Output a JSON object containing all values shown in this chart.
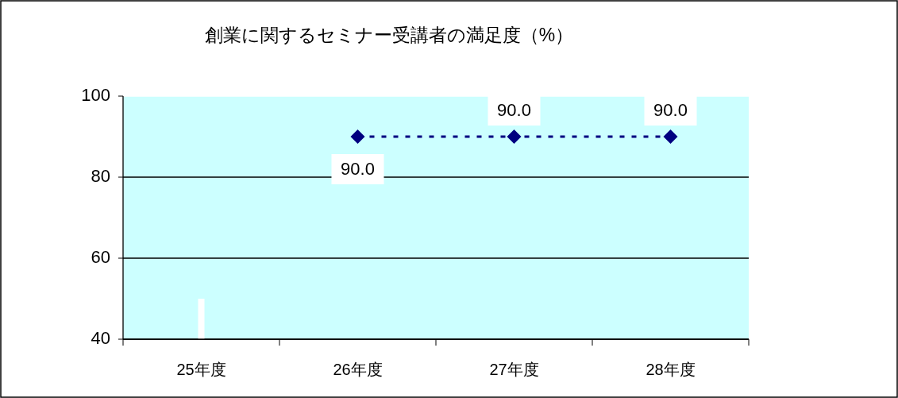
{
  "chart_data": {
    "type": "line",
    "title": "創業に関するセミナー受講者の満足度（%）",
    "categories": [
      "25年度",
      "26年度",
      "27年度",
      "28年度"
    ],
    "series": [
      {
        "type": "bar",
        "color": "#ffffff",
        "values": [
          50,
          null,
          null,
          null
        ]
      },
      {
        "color": "#000080",
        "values": [
          null,
          90.0,
          90.0,
          90.0
        ],
        "value_labels": [
          null,
          "90.0",
          "90.0",
          "90.0"
        ],
        "marker": "diamond",
        "line_style": "dashed"
      }
    ],
    "ylim": [
      40,
      100
    ],
    "yticks": [
      40,
      60,
      80,
      100
    ],
    "grid": "y"
  }
}
